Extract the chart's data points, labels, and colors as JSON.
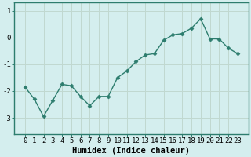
{
  "x": [
    0,
    1,
    2,
    3,
    4,
    5,
    6,
    7,
    8,
    9,
    10,
    11,
    12,
    13,
    14,
    15,
    16,
    17,
    18,
    19,
    20,
    21,
    22,
    23
  ],
  "y": [
    -1.85,
    -2.3,
    -2.95,
    -2.35,
    -1.75,
    -1.8,
    -2.2,
    -2.55,
    -2.2,
    -2.2,
    -1.5,
    -1.25,
    -0.9,
    -0.65,
    -0.6,
    -0.1,
    0.1,
    0.15,
    0.35,
    0.7,
    -0.05,
    -0.05,
    -0.4,
    -0.6
  ],
  "line_color": "#2d7d6e",
  "marker": "D",
  "markersize": 2.5,
  "linewidth": 1.0,
  "bg_color": "#d4eeee",
  "grid_color": "#c0d8d0",
  "axis_color": "#2d7d6e",
  "xlabel": "Humidex (Indice chaleur)",
  "xlabel_fontsize": 7.5,
  "tick_fontsize": 6.5,
  "ylim": [
    -3.6,
    1.3
  ],
  "yticks": [
    -3,
    -2,
    -1,
    0,
    1
  ],
  "xticks": [
    0,
    1,
    2,
    3,
    4,
    5,
    6,
    7,
    8,
    9,
    10,
    11,
    12,
    13,
    14,
    15,
    16,
    17,
    18,
    19,
    20,
    21,
    22,
    23
  ]
}
